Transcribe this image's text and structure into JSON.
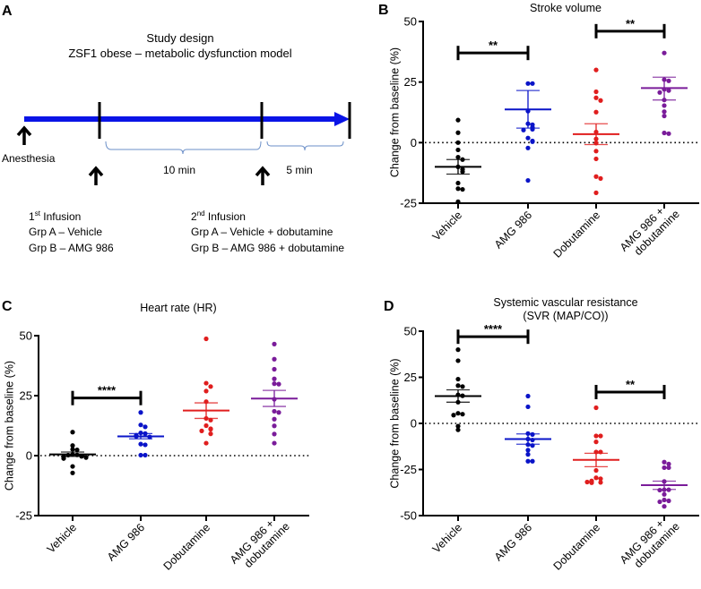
{
  "panel_a": {
    "letter": "A",
    "title_line1": "Study design",
    "title_line2": "ZSF1 obese – metabolic dysfunction model",
    "anesthesia_label": "Anesthesia",
    "interval1_label": "10 min",
    "interval2_label": "5 min",
    "infusion1": {
      "ordinal": "1",
      "ordinal_suffix": "st",
      "title": " Infusion",
      "line1": "Grp A – Vehicle",
      "line2": "Grp B – AMG 986"
    },
    "infusion2": {
      "ordinal": "2",
      "ordinal_suffix": "nd",
      "title": " Infusion",
      "line1": "Grp A – Vehicle + dobutamine",
      "line2": "Grp B – AMG 986 + dobutamine"
    },
    "colors": {
      "timeline": "#0a14e6",
      "markers": "#000000",
      "brace": "#6b8fc8"
    }
  },
  "chart_data": [
    {
      "id": "B",
      "letter": "B",
      "type": "scatter",
      "title": "Stroke volume",
      "subtitle": "",
      "xlabel": "",
      "ylabel": "Change from baseline (%)",
      "ylim": [
        -25,
        50
      ],
      "yticks": [
        -25,
        0,
        25,
        50
      ],
      "ytick_labels": [
        "-25",
        "0",
        "25",
        "50"
      ],
      "reference_line": 0,
      "grid": false,
      "categories": [
        "Vehicle",
        "AMG 986",
        "Dobutamine",
        "AMG 986 + dobutamine"
      ],
      "category_lines": [
        [
          "Vehicle"
        ],
        [
          "AMG 986"
        ],
        [
          "Dobutamine"
        ],
        [
          "AMG 986 +",
          "dobutamine"
        ]
      ],
      "series": [
        {
          "name": "Vehicle",
          "color": "#000000",
          "mean": -10,
          "sem_low": -13,
          "sem_high": -7,
          "values": [
            9.3,
            4.1,
            0,
            -3,
            -6,
            -7,
            -10,
            -11,
            -12,
            -16.7,
            -19,
            -19.3,
            -24.4
          ]
        },
        {
          "name": "AMG 986",
          "color": "#0a14c8",
          "mean": 13.7,
          "sem_low": 6,
          "sem_high": 21.5,
          "values": [
            24.4,
            24.4,
            13,
            7.8,
            7.4,
            6.3,
            5.5,
            5.2,
            1.9,
            0.7,
            0.4,
            -2.2,
            -15.6
          ]
        },
        {
          "name": "Dobutamine",
          "color": "#e01e1e",
          "mean": 3.5,
          "sem_low": -0.8,
          "sem_high": 7.8,
          "values": [
            30,
            21,
            18.5,
            17.4,
            12.6,
            4.4,
            1.5,
            -0.2,
            -3.5,
            -6.7,
            -14,
            -14.8,
            -20.7
          ]
        },
        {
          "name": "AMG 986 + dobutamine",
          "color": "#7a1c9a",
          "mean": 22.5,
          "sem_low": 17.6,
          "sem_high": 27,
          "values": [
            37,
            26,
            25.5,
            22,
            21.5,
            20.7,
            17.6,
            15.3,
            12.8,
            11,
            4,
            3.7
          ]
        }
      ],
      "significance": [
        {
          "from": 0,
          "to": 1,
          "y": 37,
          "label": "**"
        },
        {
          "from": 2,
          "to": 3,
          "y": 46,
          "label": "**"
        }
      ]
    },
    {
      "id": "C",
      "letter": "C",
      "type": "scatter",
      "title": "Heart rate (HR)",
      "subtitle": "",
      "xlabel": "",
      "ylabel": "Change from baseline (%)",
      "ylim": [
        -25,
        50
      ],
      "yticks": [
        -25,
        0,
        25,
        50
      ],
      "ytick_labels": [
        "-25",
        "0",
        "25",
        "50"
      ],
      "reference_line": 0,
      "grid": false,
      "categories": [
        "Vehicle",
        "AMG 986",
        "Dobutamine",
        "AMG 986 + dobutamine"
      ],
      "category_lines": [
        [
          "Vehicle"
        ],
        [
          "AMG 986"
        ],
        [
          "Dobutamine"
        ],
        [
          "AMG 986 +",
          "dobutamine"
        ]
      ],
      "series": [
        {
          "name": "Vehicle",
          "color": "#000000",
          "mean": 0.5,
          "sem_low": -0.3,
          "sem_high": 1.5,
          "values": [
            9.8,
            4.2,
            2.6,
            2.4,
            0.5,
            0.3,
            0.2,
            -0.3,
            -0.5,
            -0.8,
            -1.2,
            -4.5,
            -7.2
          ]
        },
        {
          "name": "AMG 986",
          "color": "#0a14c8",
          "mean": 8,
          "sem_low": 7,
          "sem_high": 9.2,
          "values": [
            18,
            12.8,
            12,
            9.5,
            9.2,
            8.5,
            8,
            7.8,
            4.8,
            4.5,
            0.2,
            0.2
          ]
        },
        {
          "name": "Dobutamine",
          "color": "#e01e1e",
          "mean": 18.8,
          "sem_low": 15.5,
          "sem_high": 22,
          "values": [
            48.7,
            30.2,
            28.8,
            26.9,
            22.5,
            15.5,
            14.8,
            12.5,
            11.2,
            11,
            10.3,
            9.1,
            5.2
          ]
        },
        {
          "name": "AMG 986 + dobutamine",
          "color": "#7a1c9a",
          "mean": 23.8,
          "sem_low": 20.5,
          "sem_high": 27.2,
          "values": [
            46.5,
            40.2,
            36,
            32,
            30,
            29.8,
            23.5,
            18.5,
            18,
            15.2,
            12.4,
            9,
            5.2
          ]
        }
      ],
      "significance": [
        {
          "from": 0,
          "to": 1,
          "y": 24,
          "label": "****"
        }
      ]
    },
    {
      "id": "D",
      "letter": "D",
      "type": "scatter",
      "title": "Systemic vascular resistance",
      "subtitle": "(SVR (MAP/CO))",
      "xlabel": "",
      "ylabel": "Change from baseline (%)",
      "ylim": [
        -50,
        50
      ],
      "yticks": [
        -50,
        -25,
        0,
        25,
        50
      ],
      "ytick_labels": [
        "-50",
        "-25",
        "0",
        "25",
        "50"
      ],
      "reference_line": 0,
      "grid": false,
      "categories": [
        "Vehicle",
        "AMG 986",
        "Dobutamine",
        "AMG 986 + dobutamine"
      ],
      "category_lines": [
        [
          "Vehicle"
        ],
        [
          "AMG 986"
        ],
        [
          "Dobutamine"
        ],
        [
          "AMG 986 +",
          "dobutamine"
        ]
      ],
      "series": [
        {
          "name": "Vehicle",
          "color": "#000000",
          "mean": 14.8,
          "sem_low": 11.5,
          "sem_high": 18.2,
          "values": [
            40,
            34,
            24,
            20.5,
            20,
            15.5,
            15,
            11.5,
            5.5,
            5,
            4.5,
            -1.5,
            -3.5
          ]
        },
        {
          "name": "AMG 986",
          "color": "#0a14c8",
          "mean": -8.5,
          "sem_low": -11.3,
          "sem_high": -5.7,
          "values": [
            14.8,
            9,
            -5.5,
            -6,
            -8.5,
            -9,
            -11.5,
            -12,
            -14.5,
            -16.8,
            -20.5,
            -20.5
          ]
        },
        {
          "name": "Dobutamine",
          "color": "#e01e1e",
          "mean": -19.8,
          "sem_low": -23.5,
          "sem_high": -16.2,
          "values": [
            8.5,
            -6.8,
            -6.8,
            -10,
            -15.5,
            -15.5,
            -25.5,
            -29.5,
            -30,
            -31.2,
            -32,
            -32.2,
            -31.8
          ]
        },
        {
          "name": "AMG 986 + dobutamine",
          "color": "#7a1c9a",
          "mean": -33.5,
          "sem_low": -35.8,
          "sem_high": -31.3,
          "values": [
            -21,
            -22,
            -24,
            -24,
            -31.5,
            -36,
            -36,
            -36.2,
            -38.5,
            -41.5,
            -42,
            -42.5,
            -45
          ]
        }
      ],
      "significance": [
        {
          "from": 0,
          "to": 1,
          "y": 47,
          "label": "****"
        },
        {
          "from": 2,
          "to": 3,
          "y": 17,
          "label": "**"
        }
      ]
    }
  ]
}
